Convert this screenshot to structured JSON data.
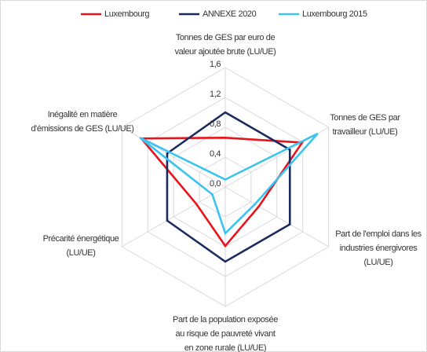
{
  "chart_data": {
    "type": "radar",
    "categories": [
      [
        "Tonnes de GES par euro de",
        "valeur ajoutée brute (LU/UE)"
      ],
      [
        "Tonnes de GES par",
        "travailleur (LU/UE)"
      ],
      [
        "Part de l'emploi dans les",
        "industries énergivores",
        "(LU/UE)"
      ],
      [
        "Part de la population exposée",
        "au risque de pauvreté vivant",
        "en zone rurale (LU/UE)"
      ],
      [
        "Précarité énergétique",
        "(LU/UE)"
      ],
      [
        "Inégalité en matière",
        "d'émissions de GES (LU/UE)"
      ]
    ],
    "series": [
      {
        "name": "Luxembourg",
        "color": "#e8141b",
        "values": [
          0.66,
          1.19,
          0.52,
          0.79,
          0.45,
          1.3
        ]
      },
      {
        "name": "ANNEXE 2020",
        "color": "#1c2b5e",
        "values": [
          1.0,
          1.0,
          1.0,
          1.0,
          0.9,
          0.9
        ]
      },
      {
        "name": "Luxembourg 2015",
        "color": "#3cc3f0",
        "values": [
          0.1,
          1.43,
          0.46,
          0.62,
          0.2,
          1.32
        ]
      }
    ],
    "ylim": [
      0,
      1.6
    ],
    "yticks": [
      {
        "value": 0,
        "label": "0,0"
      },
      {
        "value": 0.4,
        "label": "0,4"
      },
      {
        "value": 0.8,
        "label": "0,8"
      },
      {
        "value": 1.2,
        "label": "1,2"
      },
      {
        "value": 1.6,
        "label": "1,6"
      }
    ],
    "grid": true,
    "legend": "top"
  }
}
